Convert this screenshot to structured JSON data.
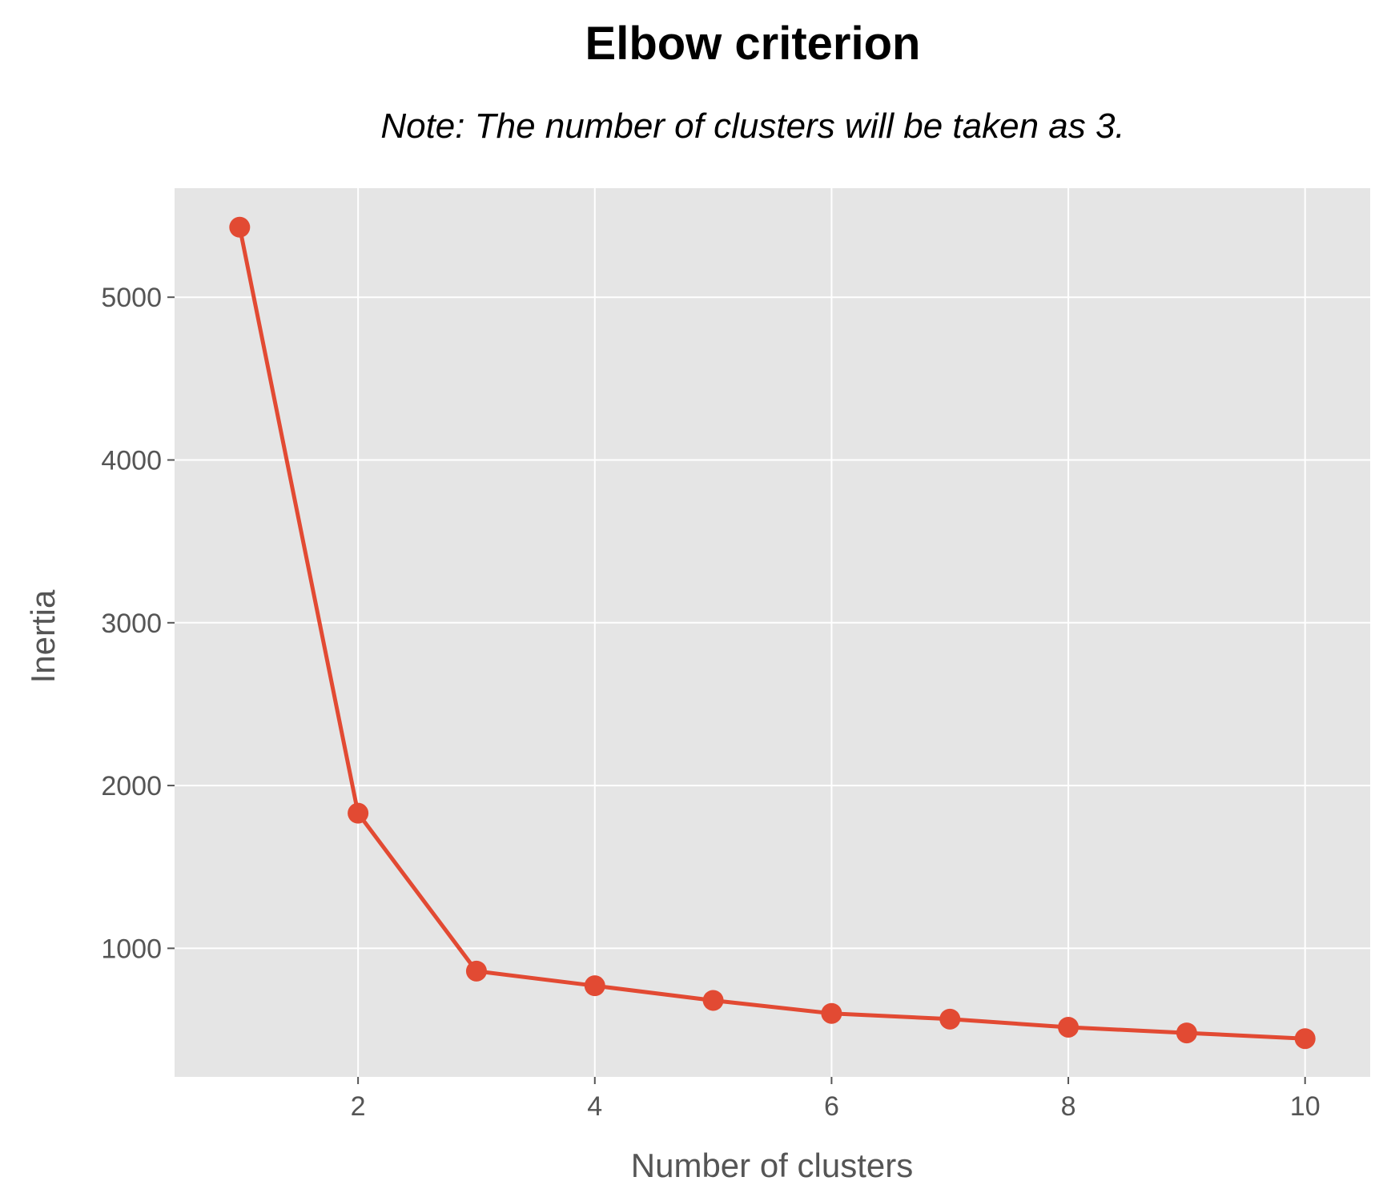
{
  "chart_data": {
    "type": "line",
    "title": "Elbow criterion",
    "subtitle": "Note: The number of clusters will be taken as 3.",
    "xlabel": "Number of clusters",
    "ylabel": "Inertia",
    "x": [
      1,
      2,
      3,
      4,
      5,
      6,
      7,
      8,
      9,
      10
    ],
    "series": [
      {
        "values": [
          5430,
          1830,
          860,
          770,
          680,
          600,
          565,
          515,
          480,
          445
        ]
      }
    ],
    "xlim": [
      0.45,
      10.55
    ],
    "ylim": [
      210,
      5670
    ],
    "xticks": [
      2,
      4,
      6,
      8,
      10
    ],
    "yticks": [
      1000,
      2000,
      3000,
      4000,
      5000
    ],
    "xtick_labels": [
      "2",
      "4",
      "6",
      "8",
      "10"
    ],
    "ytick_labels": [
      "1000",
      "2000",
      "3000",
      "4000",
      "5000"
    ],
    "grid": true,
    "colors": {
      "line": "#e24a33",
      "plot_bg": "#e5e5e5",
      "grid": "#ffffff"
    }
  }
}
